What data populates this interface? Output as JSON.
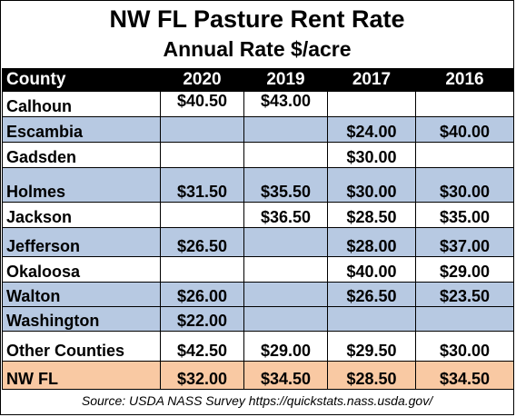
{
  "title": "NW FL Pasture Rent Rate",
  "subtitle": "Annual Rate $/acre",
  "header": [
    "County",
    "2020",
    "2019",
    "2017",
    "2016"
  ],
  "rows": [
    {
      "county": "Calhoun",
      "y2020": "$40.50",
      "y2019": "$43.00",
      "y2017": "",
      "y2016": "",
      "style": "white"
    },
    {
      "county": "Escambia",
      "y2020": "",
      "y2019": "",
      "y2017": "$24.00",
      "y2016": "$40.00",
      "style": "blue"
    },
    {
      "county": "Gadsden",
      "y2020": "",
      "y2019": "",
      "y2017": "$30.00",
      "y2016": "",
      "style": "white"
    },
    {
      "county": "Holmes",
      "y2020": "$31.50",
      "y2019": "$35.50",
      "y2017": "$30.00",
      "y2016": "$30.00",
      "style": "blue"
    },
    {
      "county": "Jackson",
      "y2020": "",
      "y2019": "$36.50",
      "y2017": "$28.50",
      "y2016": "$35.00",
      "style": "white"
    },
    {
      "county": "Jefferson",
      "y2020": "$26.50",
      "y2019": "",
      "y2017": "$28.00",
      "y2016": "$37.00",
      "style": "blue"
    },
    {
      "county": "Okaloosa",
      "y2020": "",
      "y2019": "",
      "y2017": "$40.00",
      "y2016": "$29.00",
      "style": "white"
    },
    {
      "county": "Walton",
      "y2020": "$26.00",
      "y2019": "",
      "y2017": "$26.50",
      "y2016": "$23.50",
      "style": "blue"
    },
    {
      "county": "Washington",
      "y2020": "$22.00",
      "y2019": "",
      "y2017": "",
      "y2016": "",
      "style": "blue"
    },
    {
      "county": "Other Counties",
      "y2020": "$42.50",
      "y2019": "$29.00",
      "y2017": "$29.50",
      "y2016": "$30.00",
      "style": "white"
    },
    {
      "county": "NW FL",
      "y2020": "$32.00",
      "y2019": "$34.50",
      "y2017": "$28.50",
      "y2016": "$34.50",
      "style": "total"
    }
  ],
  "source": "Source:  USDA NASS Survey  https://quickstats.nass.usda.gov/",
  "colors": {
    "header_bg": "#000000",
    "blue_row": "#b7c9e2",
    "total_row": "#f9c9a3"
  }
}
